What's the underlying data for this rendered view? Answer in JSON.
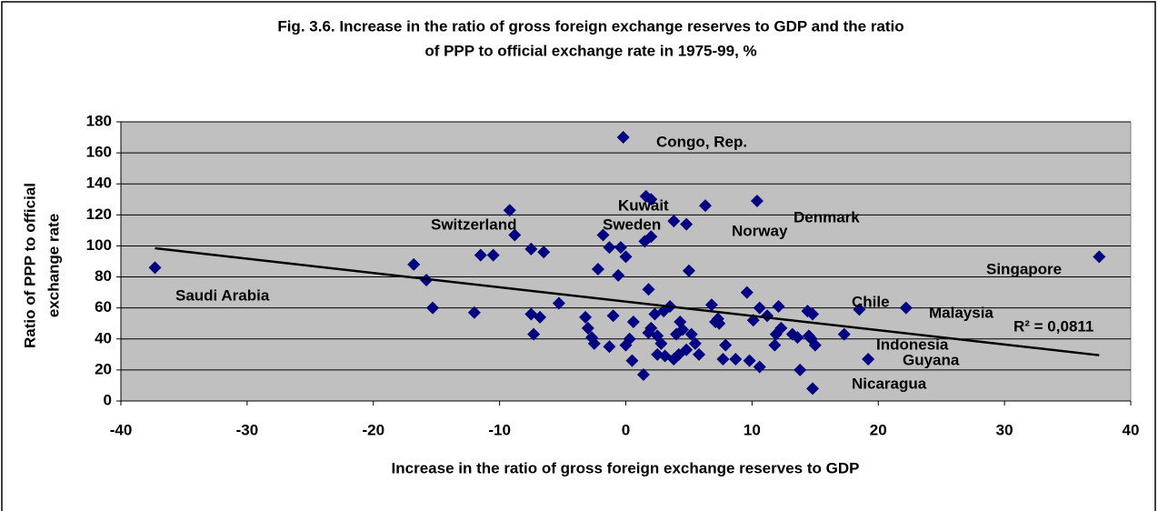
{
  "chart_data": {
    "type": "scatter",
    "title": [
      "Fig. 3.6. Increase in the ratio of gross foreign exchange reserves to GDP and the ratio",
      "of PPP to official exchange rate in 1975-99, %"
    ],
    "xlabel": "Increase in the ratio of gross foreign exchange reserves to GDP",
    "ylabel": [
      "Ratio of PPP to official",
      "exchange rate"
    ],
    "xlim": [
      -40,
      40
    ],
    "xticks": [
      -40,
      -30,
      -20,
      -10,
      0,
      10,
      20,
      30,
      40
    ],
    "ylim": [
      0,
      180
    ],
    "yticks": [
      0,
      20,
      40,
      60,
      80,
      100,
      120,
      140,
      160,
      180
    ],
    "grid": true,
    "background": "#c0c0c0",
    "series": [
      {
        "color": "#000080",
        "x": [
          -37.3,
          -16.8,
          -15.8,
          -15.3,
          -12,
          -11.5,
          -10.5,
          -9.2,
          -8.8,
          -7.5,
          -7.5,
          -7.3,
          -6.8,
          -6.5,
          -5.3,
          -3.2,
          -3,
          -2.7,
          -2.5,
          -2.2,
          -1.8,
          -1.3,
          -1.3,
          -1,
          -0.6,
          -0.4,
          -0.2,
          0,
          0,
          0.3,
          0.5,
          0.6,
          1.4,
          1.5,
          1.6,
          1.8,
          2,
          2,
          1.8,
          2,
          2.3,
          2.5,
          2.5,
          2.8,
          3,
          3.1,
          3.5,
          3.8,
          3.8,
          4,
          4.2,
          4.3,
          4.5,
          4.8,
          4.8,
          5,
          5.2,
          5.5,
          5.8,
          6.3,
          6.8,
          7.1,
          7.3,
          7.4,
          7.7,
          7.9,
          8.7,
          9.6,
          9.8,
          10.1,
          10.4,
          10.6,
          10.6,
          11.2,
          11.8,
          11.9,
          12.1,
          12.3,
          13.2,
          13.6,
          13.8,
          14.4,
          14.5,
          14.7,
          14.8,
          14.8,
          15,
          17.3,
          18.5,
          19.2,
          22.2,
          37.5
        ],
        "values": [
          86,
          88,
          78,
          60,
          57,
          94,
          94,
          123,
          107,
          98,
          56,
          43,
          54,
          96,
          63,
          54,
          47,
          41,
          37,
          85,
          107,
          99,
          35,
          55,
          81,
          99,
          170,
          93,
          36,
          40,
          26,
          51,
          17,
          103,
          132,
          72,
          106,
          130,
          44,
          47,
          56,
          30,
          42,
          37,
          58,
          29,
          61,
          27,
          116,
          43,
          30,
          51,
          46,
          114,
          33,
          84,
          43,
          37,
          30,
          126,
          62,
          51,
          53,
          50,
          27,
          36,
          27,
          70,
          26,
          52,
          129,
          22,
          60,
          55,
          36,
          43,
          61,
          47,
          43,
          41,
          20,
          58,
          42,
          40,
          8,
          56,
          36,
          43,
          59,
          27,
          60,
          93
        ]
      }
    ],
    "trendline": {
      "color": "#000000",
      "x": [
        -37.3,
        37.5
      ],
      "values": [
        98.5,
        29.5
      ]
    },
    "annotations": [
      "Congo, Rep.",
      "Kuwait",
      "Switzerland",
      "Sweden",
      "Denmark",
      "Norway",
      "Singapore",
      "Saudi Arabia",
      "Chile",
      "Malaysia",
      "R² = 0,0811",
      "Indonesia",
      "Guyana",
      "Nicaragua"
    ]
  }
}
